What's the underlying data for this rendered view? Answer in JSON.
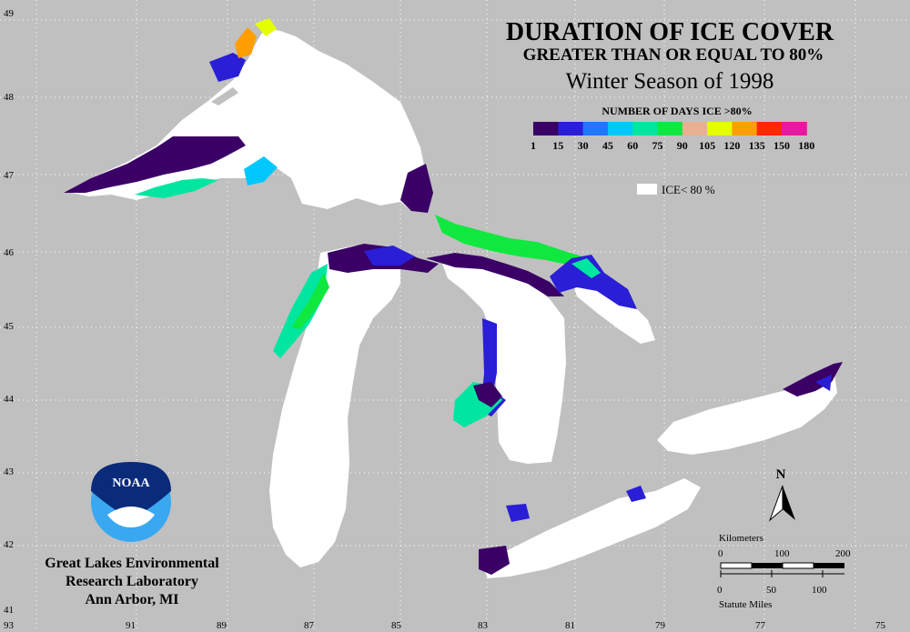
{
  "title": "DURATION OF ICE COVER",
  "subtitle": "GREATER THAN OR EQUAL TO 80%",
  "season": "Winter Season of 1998",
  "legend": {
    "title": "NUMBER OF DAYS ICE >80%",
    "colors": [
      "#3a0066",
      "#2a1ed6",
      "#1e78ff",
      "#00c8ff",
      "#00e6a0",
      "#10e840",
      "#e8b090",
      "#e4ff00",
      "#ff9e00",
      "#ff2800",
      "#e61aa0"
    ],
    "labels": [
      "1",
      "15",
      "30",
      "45",
      "60",
      "75",
      "90",
      "105",
      "120",
      "135",
      "150",
      "180"
    ],
    "no_ice_label": "ICE< 80 %"
  },
  "lat_labels": [
    "49",
    "48",
    "47",
    "46",
    "45",
    "44",
    "43",
    "42",
    "41"
  ],
  "lon_labels": [
    "93",
    "91",
    "89",
    "87",
    "85",
    "83",
    "81",
    "79",
    "77",
    "75"
  ],
  "scale_bar": {
    "km_title": "Kilometers",
    "km_labels": [
      "0",
      "100",
      "200"
    ],
    "mi_labels": [
      "0",
      "50",
      "100"
    ],
    "mi_title": "Statute Miles"
  },
  "north_label": "N",
  "logo_text": "NOAA",
  "org": [
    "Great Lakes Environmental",
    "Research Laboratory",
    "Ann Arbor, MI"
  ]
}
